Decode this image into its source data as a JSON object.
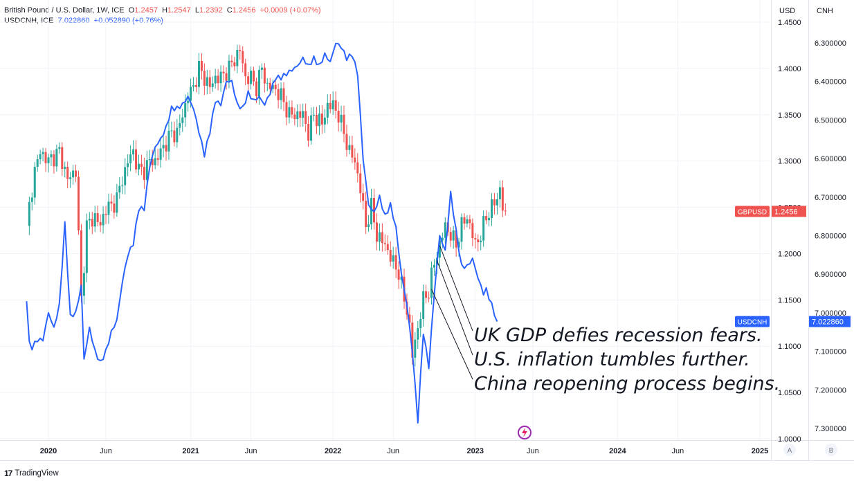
{
  "legend": {
    "gbp_title": "British Pound / U.S. Dollar, 1W, ICE",
    "gbp_o_label": "O",
    "gbp_o": "1.2457",
    "gbp_h_label": "H",
    "gbp_h": "1.2547",
    "gbp_l_label": "L",
    "gbp_l": "1.2392",
    "gbp_c_label": "C",
    "gbp_c": "1.2456",
    "gbp_change": "+0.0009 (+0.07%)",
    "cnh_title": "USDCNH, ICE",
    "cnh_value": "7.022860",
    "cnh_change": "+0.052890 (+0.76%)"
  },
  "branding": {
    "logo_text": "TradingView",
    "logo_mark": "17"
  },
  "colors": {
    "up": "#26a69a",
    "down": "#ef5350",
    "cnh_line": "#2962ff",
    "grid": "#f0f3fa",
    "text": "#131722"
  },
  "chart_data": {
    "type": "line",
    "title": "British Pound / U.S. Dollar, 1W, ICE",
    "left_axis_label": "USD",
    "right_axis_label": "CNH",
    "gbp_ylim": [
      1.0,
      1.45
    ],
    "cnh_ylim_top_to_bottom": [
      6.21,
      7.39
    ],
    "usd_ticks": [
      "1.4500",
      "1.4000",
      "1.3500",
      "1.3000",
      "1.2500",
      "1.2000",
      "1.1500",
      "1.1000",
      "1.0500",
      "1.0000"
    ],
    "cnh_ticks": [
      "6.300000",
      "6.400000",
      "6.500000",
      "6.600000",
      "6.700000",
      "6.800000",
      "6.900000",
      "7.000000",
      "7.100000",
      "7.200000",
      "7.300000"
    ],
    "x_labels": [
      "2020",
      "Jun",
      "2021",
      "Jun",
      "2022",
      "Jun",
      "2023",
      "Jun",
      "2024",
      "Jun",
      "2025"
    ],
    "x_label_weeks": [
      0,
      21,
      52,
      74,
      104,
      126,
      156,
      177,
      208,
      230,
      260
    ],
    "bold_x_labels": [
      "2020",
      "2021",
      "2022",
      "2023",
      "2024",
      "2025"
    ],
    "gbpusd_close_key_points": [
      [
        -8,
        1.23
      ],
      [
        -5,
        1.29
      ],
      [
        -3,
        1.31
      ],
      [
        0,
        1.3
      ],
      [
        4,
        1.31
      ],
      [
        7,
        1.28
      ],
      [
        10,
        1.29
      ],
      [
        12,
        1.15
      ],
      [
        14,
        1.23
      ],
      [
        17,
        1.24
      ],
      [
        19,
        1.23
      ],
      [
        21,
        1.25
      ],
      [
        23,
        1.25
      ],
      [
        25,
        1.26
      ],
      [
        27,
        1.28
      ],
      [
        29,
        1.3
      ],
      [
        31,
        1.31
      ],
      [
        33,
        1.29
      ],
      [
        35,
        1.29
      ],
      [
        37,
        1.3
      ],
      [
        39,
        1.3
      ],
      [
        41,
        1.31
      ],
      [
        43,
        1.32
      ],
      [
        45,
        1.33
      ],
      [
        47,
        1.33
      ],
      [
        49,
        1.35
      ],
      [
        51,
        1.37
      ],
      [
        53,
        1.38
      ],
      [
        55,
        1.4
      ],
      [
        57,
        1.39
      ],
      [
        59,
        1.38
      ],
      [
        61,
        1.39
      ],
      [
        63,
        1.39
      ],
      [
        66,
        1.4
      ],
      [
        68,
        1.41
      ],
      [
        70,
        1.42
      ],
      [
        72,
        1.39
      ],
      [
        74,
        1.39
      ],
      [
        76,
        1.38
      ],
      [
        78,
        1.4
      ],
      [
        80,
        1.38
      ],
      [
        82,
        1.38
      ],
      [
        85,
        1.37
      ],
      [
        88,
        1.35
      ],
      [
        90,
        1.35
      ],
      [
        93,
        1.35
      ],
      [
        95,
        1.33
      ],
      [
        97,
        1.35
      ],
      [
        100,
        1.34
      ],
      [
        102,
        1.36
      ],
      [
        104,
        1.36
      ],
      [
        106,
        1.35
      ],
      [
        108,
        1.33
      ],
      [
        110,
        1.31
      ],
      [
        112,
        1.3
      ],
      [
        114,
        1.27
      ],
      [
        116,
        1.23
      ],
      [
        118,
        1.25
      ],
      [
        120,
        1.22
      ],
      [
        123,
        1.21
      ],
      [
        126,
        1.19
      ],
      [
        128,
        1.18
      ],
      [
        130,
        1.15
      ],
      [
        131,
        1.14
      ],
      [
        132,
        1.12
      ],
      [
        133,
        1.09
      ],
      [
        135,
        1.12
      ],
      [
        137,
        1.15
      ],
      [
        139,
        1.16
      ],
      [
        141,
        1.19
      ],
      [
        143,
        1.21
      ],
      [
        145,
        1.23
      ],
      [
        147,
        1.22
      ],
      [
        149,
        1.21
      ],
      [
        151,
        1.23
      ],
      [
        153,
        1.24
      ],
      [
        156,
        1.21
      ],
      [
        158,
        1.22
      ],
      [
        160,
        1.24
      ],
      [
        162,
        1.25
      ],
      [
        164,
        1.26
      ],
      [
        165,
        1.27
      ],
      [
        166,
        1.25
      ],
      [
        167,
        1.2456
      ]
    ],
    "usdcnh_key_points": [
      [
        -8,
        6.97
      ],
      [
        -7,
        7.08
      ],
      [
        -6,
        7.09
      ],
      [
        -4,
        7.07
      ],
      [
        -2,
        7.07
      ],
      [
        0,
        7.0
      ],
      [
        2,
        7.04
      ],
      [
        4,
        6.98
      ],
      [
        6,
        6.77
      ],
      [
        8,
        7.01
      ],
      [
        10,
        7.0
      ],
      [
        12,
        6.93
      ],
      [
        13,
        7.12
      ],
      [
        15,
        7.04
      ],
      [
        17,
        7.1
      ],
      [
        19,
        7.13
      ],
      [
        21,
        7.1
      ],
      [
        23,
        7.05
      ],
      [
        25,
        7.02
      ],
      [
        27,
        6.92
      ],
      [
        29,
        6.85
      ],
      [
        31,
        6.82
      ],
      [
        33,
        6.73
      ],
      [
        35,
        6.73
      ],
      [
        37,
        6.62
      ],
      [
        39,
        6.57
      ],
      [
        41,
        6.55
      ],
      [
        43,
        6.52
      ],
      [
        45,
        6.47
      ],
      [
        47,
        6.47
      ],
      [
        49,
        6.46
      ],
      [
        51,
        6.44
      ],
      [
        53,
        6.47
      ],
      [
        55,
        6.53
      ],
      [
        57,
        6.59
      ],
      [
        59,
        6.53
      ],
      [
        61,
        6.45
      ],
      [
        63,
        6.46
      ],
      [
        65,
        6.4
      ],
      [
        67,
        6.4
      ],
      [
        69,
        6.46
      ],
      [
        71,
        6.47
      ],
      [
        73,
        6.43
      ],
      [
        75,
        6.45
      ],
      [
        77,
        6.44
      ],
      [
        79,
        6.46
      ],
      [
        81,
        6.43
      ],
      [
        83,
        6.39
      ],
      [
        85,
        6.39
      ],
      [
        87,
        6.38
      ],
      [
        89,
        6.37
      ],
      [
        91,
        6.36
      ],
      [
        93,
        6.34
      ],
      [
        95,
        6.36
      ],
      [
        97,
        6.34
      ],
      [
        99,
        6.36
      ],
      [
        101,
        6.33
      ],
      [
        103,
        6.35
      ],
      [
        105,
        6.3
      ],
      [
        107,
        6.31
      ],
      [
        109,
        6.34
      ],
      [
        111,
        6.33
      ],
      [
        113,
        6.38
      ],
      [
        115,
        6.6
      ],
      [
        117,
        6.72
      ],
      [
        119,
        6.74
      ],
      [
        121,
        6.7
      ],
      [
        123,
        6.75
      ],
      [
        125,
        6.72
      ],
      [
        127,
        6.78
      ],
      [
        129,
        6.9
      ],
      [
        131,
        6.98
      ],
      [
        133,
        7.1
      ],
      [
        135,
        7.28
      ],
      [
        137,
        7.05
      ],
      [
        139,
        7.14
      ],
      [
        141,
        6.95
      ],
      [
        143,
        6.8
      ],
      [
        145,
        6.84
      ],
      [
        147,
        6.69
      ],
      [
        149,
        6.79
      ],
      [
        151,
        6.88
      ],
      [
        153,
        6.88
      ],
      [
        155,
        6.86
      ],
      [
        157,
        6.91
      ],
      [
        159,
        6.95
      ],
      [
        160,
        6.94
      ],
      [
        162,
        6.98
      ],
      [
        164,
        7.0228
      ]
    ],
    "annotations": [
      "UK GDP defies recession fears.",
      "U.S. inflation tumbles further.",
      "China reopening process begins."
    ],
    "annotation_anchor_weeks": [
      143,
      142,
      140
    ],
    "current_markers": [
      {
        "label": "GBPUSD",
        "value": "1.2456",
        "axis": "left"
      },
      {
        "label": "USDCNH",
        "value": "7.022860",
        "axis": "right"
      }
    ],
    "axis_buttons": [
      "A",
      "B"
    ]
  }
}
